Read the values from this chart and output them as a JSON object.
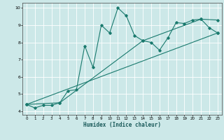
{
  "xlabel": "Humidex (Indice chaleur)",
  "bg_color": "#cce8e8",
  "line_color": "#1a7a6e",
  "grid_color": "#ffffff",
  "xlim": [
    -0.5,
    23.5
  ],
  "ylim": [
    3.8,
    10.3
  ],
  "yticks": [
    4,
    5,
    6,
    7,
    8,
    9,
    10
  ],
  "xticks": [
    0,
    1,
    2,
    3,
    4,
    5,
    6,
    7,
    8,
    9,
    10,
    11,
    12,
    13,
    14,
    15,
    16,
    17,
    18,
    19,
    20,
    21,
    22,
    23
  ],
  "line1_x": [
    0,
    1,
    2,
    3,
    4,
    5,
    6,
    7,
    8,
    9,
    10,
    11,
    12,
    13,
    14,
    15,
    16,
    17,
    18,
    19,
    20,
    21,
    22,
    23
  ],
  "line1_y": [
    4.4,
    4.2,
    4.35,
    4.35,
    4.5,
    5.2,
    5.25,
    7.8,
    6.55,
    9.0,
    8.55,
    10.0,
    9.55,
    8.4,
    8.1,
    8.0,
    7.55,
    8.25,
    9.15,
    9.1,
    9.3,
    9.35,
    8.85,
    8.55
  ],
  "line2_x": [
    0,
    23
  ],
  "line2_y": [
    4.4,
    8.55
  ],
  "line3_x": [
    0,
    4,
    14,
    21,
    23
  ],
  "line3_y": [
    4.4,
    4.5,
    8.1,
    9.35,
    9.3
  ]
}
